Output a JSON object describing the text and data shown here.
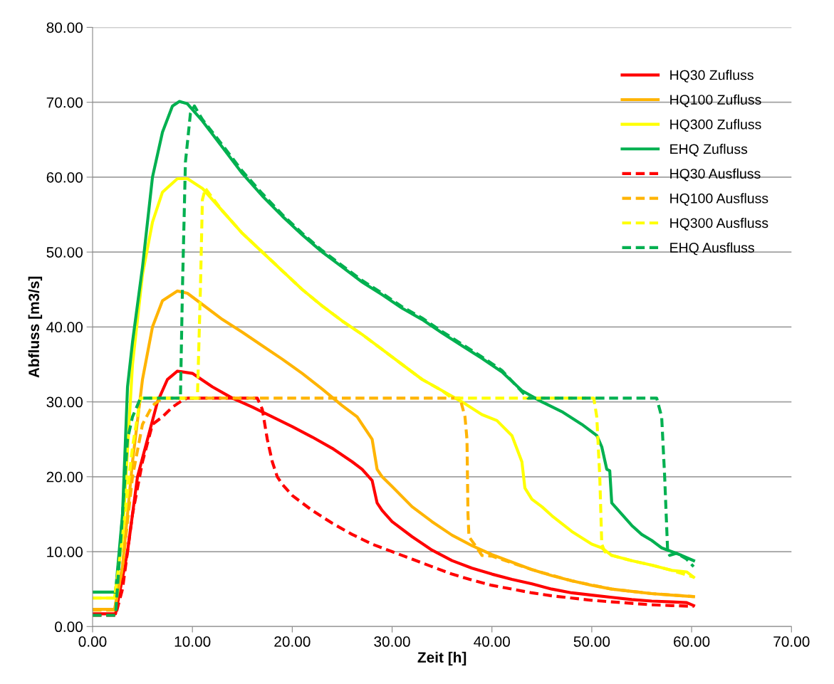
{
  "chart_data": {
    "type": "line",
    "xlabel": "Zeit [h]",
    "ylabel": "Abfluss [m3/s]",
    "xlim": [
      0,
      70
    ],
    "ylim": [
      0,
      80
    ],
    "xticks": [
      {
        "value": 0,
        "label": "0.00"
      },
      {
        "value": 10,
        "label": "10.00"
      },
      {
        "value": 20,
        "label": "20.00"
      },
      {
        "value": 30,
        "label": "30.00"
      },
      {
        "value": 40,
        "label": "40.00"
      },
      {
        "value": 50,
        "label": "50.00"
      },
      {
        "value": 60,
        "label": "60.00"
      },
      {
        "value": 70,
        "label": "70.00"
      }
    ],
    "yticks": [
      {
        "value": 0,
        "label": "0.00"
      },
      {
        "value": 10,
        "label": "10.00"
      },
      {
        "value": 20,
        "label": "20.00"
      },
      {
        "value": 30,
        "label": "30.00"
      },
      {
        "value": 40,
        "label": "40.00"
      },
      {
        "value": 50,
        "label": "50.00"
      },
      {
        "value": 60,
        "label": "60.00"
      },
      {
        "value": 70,
        "label": "70.00"
      },
      {
        "value": 80,
        "label": "80.00"
      }
    ],
    "grid": "y",
    "legend": "top right",
    "marker": "none",
    "series": [
      {
        "name": "HQ30 Zufluss",
        "color": "#ff0000",
        "line_style": "solid",
        "x": [
          0,
          2.3,
          3.5,
          4.5,
          5.5,
          6.5,
          7.5,
          8.5,
          10,
          12,
          14,
          16,
          18,
          20,
          22,
          24,
          26,
          27,
          28,
          28.5,
          29,
          30,
          32,
          34,
          36,
          38,
          40,
          42,
          44,
          46,
          48,
          50,
          52,
          54,
          56,
          58,
          59.5,
          60.2
        ],
        "values": [
          1.7,
          1.7,
          10,
          20,
          25,
          30,
          33,
          34.1,
          33.8,
          32,
          30.5,
          29.3,
          28,
          26.7,
          25.3,
          23.8,
          22,
          21,
          19.5,
          16.5,
          15.5,
          14,
          12,
          10.2,
          8.8,
          7.8,
          7,
          6.3,
          5.7,
          5,
          4.5,
          4.2,
          3.9,
          3.6,
          3.4,
          3.3,
          3.2,
          2.8
        ]
      },
      {
        "name": "HQ100 Zufluss",
        "color": "#ffb400",
        "line_style": "solid",
        "x": [
          0,
          2.2,
          3,
          4,
          5,
          6,
          7,
          8.5,
          9.5,
          11,
          13,
          15,
          17,
          19,
          21,
          23,
          25,
          26.5,
          27.5,
          28,
          28.5,
          29,
          30,
          32,
          34,
          36,
          38,
          40,
          42,
          44,
          46,
          48,
          50,
          52,
          54,
          56,
          58,
          60.2
        ],
        "values": [
          2.3,
          2.3,
          8,
          22,
          33,
          40,
          43.5,
          44.8,
          44.5,
          43,
          41,
          39.3,
          37.5,
          35.7,
          33.8,
          31.7,
          29.5,
          28,
          26,
          25,
          21,
          20,
          18.7,
          16,
          14,
          12.2,
          10.8,
          9.6,
          8.6,
          7.6,
          6.8,
          6.1,
          5.5,
          5,
          4.7,
          4.4,
          4.2,
          4
        ]
      },
      {
        "name": "HQ300 Zufluss",
        "color": "#ffff00",
        "line_style": "solid",
        "x": [
          0,
          2.2,
          3,
          4,
          5,
          6,
          7,
          8.5,
          9.5,
          11,
          13,
          15,
          17,
          19,
          21,
          23,
          25,
          27,
          29,
          31,
          33,
          35,
          37,
          39,
          40.5,
          42,
          43,
          43.3,
          44,
          45,
          46,
          48,
          50,
          51,
          52,
          54,
          56,
          58,
          59.5,
          60.2
        ],
        "values": [
          3.8,
          3.8,
          12,
          35,
          47,
          54,
          58,
          59.8,
          59.8,
          58.5,
          55.5,
          52.5,
          50,
          47.5,
          45,
          42.8,
          40.8,
          39,
          37,
          35,
          33,
          31.5,
          30,
          28.3,
          27.5,
          25.5,
          22,
          18.5,
          17,
          16,
          14.8,
          12.7,
          11,
          10.5,
          9.5,
          8.8,
          8.2,
          7.5,
          7.3,
          6.6
        ]
      },
      {
        "name": "EHQ Zufluss",
        "color": "#00b050",
        "line_style": "solid",
        "x": [
          0,
          2.3,
          3,
          3.5,
          4,
          5,
          6,
          7,
          8,
          8.7,
          9.5,
          11,
          13,
          15,
          17,
          19,
          21,
          23,
          25,
          27,
          29,
          31,
          33,
          35,
          37,
          39,
          41,
          43,
          45,
          47,
          49,
          50.5,
          51,
          51.5,
          51.8,
          52,
          53,
          54,
          55,
          56,
          57,
          58,
          59,
          60.2
        ],
        "values": [
          4.6,
          4.6,
          15,
          32,
          38,
          48,
          60,
          66,
          69.5,
          70.1,
          69.8,
          67.5,
          64,
          60.5,
          57.5,
          54.8,
          52.3,
          50,
          48,
          46,
          44.3,
          42.5,
          41,
          39.2,
          37.5,
          35.8,
          34,
          31.5,
          30,
          28.7,
          27,
          25.5,
          24,
          21,
          20.8,
          16.5,
          15,
          13.5,
          12.3,
          11.5,
          10.5,
          10,
          9.5,
          8.8
        ]
      },
      {
        "name": "HQ30 Ausfluss",
        "color": "#ff0000",
        "line_style": "dashed",
        "x": [
          0,
          2.3,
          3,
          4,
          5,
          6,
          7,
          8,
          9,
          9.5,
          16.5,
          17,
          17.5,
          18,
          18.5,
          19,
          20,
          22,
          24,
          26,
          28,
          30,
          32,
          34,
          36,
          38,
          40,
          42,
          44,
          46,
          48,
          50,
          52,
          54,
          56,
          58,
          60.2
        ],
        "values": [
          1.5,
          1.5,
          5,
          15,
          22,
          27,
          28,
          29.3,
          30.2,
          30.5,
          30.5,
          29,
          25,
          22,
          20,
          19,
          17.5,
          15.5,
          13.8,
          12.3,
          11,
          10,
          9,
          8,
          7,
          6.2,
          5.5,
          5,
          4.5,
          4.1,
          3.8,
          3.5,
          3.3,
          3.1,
          2.9,
          2.8,
          2.7
        ]
      },
      {
        "name": "HQ100 Ausfluss",
        "color": "#ffb400",
        "line_style": "dashed",
        "x": [
          0,
          2.2,
          3,
          4,
          5,
          6,
          7,
          36.8,
          37.3,
          37.5,
          37.6,
          37.7,
          38.5,
          39,
          40,
          44,
          48,
          52,
          56,
          60.2
        ],
        "values": [
          2.2,
          2.2,
          8,
          20,
          27,
          29.5,
          30.5,
          30.5,
          28,
          25,
          15,
          12,
          10.5,
          9.5,
          9.4,
          7.6,
          6.1,
          5,
          4.4,
          4
        ]
      },
      {
        "name": "HQ300 Ausfluss",
        "color": "#ffff00",
        "line_style": "dashed",
        "x": [
          0,
          2.2,
          3,
          4,
          4.8,
          10.5,
          10.8,
          11,
          11.3,
          13,
          15,
          17,
          19,
          21,
          23,
          25,
          27,
          29,
          31,
          33,
          35,
          36,
          50.2,
          50.5,
          50.8,
          51,
          51.3,
          52,
          54,
          56,
          58,
          60.2
        ],
        "values": [
          3.8,
          3.8,
          12,
          24,
          30.5,
          30.5,
          45,
          57,
          58.5,
          55.5,
          52.5,
          50,
          47.5,
          45,
          42.8,
          40.8,
          39,
          37,
          35,
          33,
          31.5,
          30.5,
          30.5,
          28,
          20,
          11,
          10,
          9.5,
          8.8,
          8.2,
          7.5,
          6.6
        ]
      },
      {
        "name": "EHQ Ausfluss",
        "color": "#00b050",
        "line_style": "dashed",
        "x": [
          0,
          2.3,
          3,
          3.5,
          4,
          4.8,
          8.8,
          9,
          9.3,
          9.8,
          10.2,
          11,
          13,
          15,
          17,
          19,
          21,
          23,
          25,
          27,
          29,
          31,
          33,
          35,
          37,
          39,
          41,
          43.6,
          56.5,
          57,
          57.3,
          57.6,
          57.8,
          58.5,
          59.5,
          60.2
        ],
        "values": [
          1.5,
          1.5,
          15,
          25,
          28,
          30.5,
          30.5,
          45,
          62,
          68.5,
          69.5,
          67.7,
          64.3,
          60.8,
          57.8,
          55,
          52.5,
          50.2,
          48.2,
          46.2,
          44.5,
          42.7,
          41.2,
          39.4,
          37.7,
          36,
          34.2,
          30.5,
          30.5,
          28,
          20,
          10,
          9.5,
          9.8,
          9,
          8
        ]
      }
    ]
  }
}
